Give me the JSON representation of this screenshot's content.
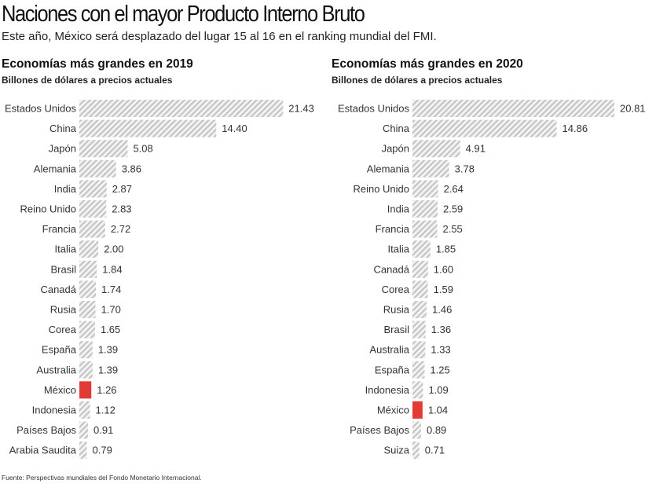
{
  "header": {
    "title": "Naciones con el mayor Producto Interno Bruto",
    "subtitle": "Este año, México será desplazado del lugar 15 al 16 en el ranking mundial del FMI."
  },
  "source": "Fuente: Perspectivas mundiales del Fondo Monetario Internacional.",
  "colors": {
    "bar": "#c8c8c8",
    "highlight": "#e23b35",
    "text": "#333333"
  },
  "chart_data": [
    {
      "type": "bar",
      "orientation": "horizontal",
      "title": "Economías más grandes en 2019",
      "subtitle": "Billones de dólares a precios actuales",
      "highlight": "México",
      "categories": [
        "Estados Unidos",
        "China",
        "Japón",
        "Alemania",
        "India",
        "Reino Unido",
        "Francia",
        "Italia",
        "Brasil",
        "Canadá",
        "Rusia",
        "Corea",
        "España",
        "Australia",
        "México",
        "Indonesia",
        "Países Bajos",
        "Arabia Saudita"
      ],
      "values": [
        21.43,
        14.4,
        5.08,
        3.86,
        2.87,
        2.83,
        2.72,
        2.0,
        1.84,
        1.74,
        1.7,
        1.65,
        1.39,
        1.39,
        1.26,
        1.12,
        0.91,
        0.79
      ],
      "labels": [
        "21.43",
        "14.40",
        "5.08",
        "3.86",
        "2.87",
        "2.83",
        "2.72",
        "2.00",
        "1.84",
        "1.74",
        "1.70",
        "1.65",
        "1.39",
        "1.39",
        "1.26",
        "1.12",
        "0.91",
        "0.79"
      ]
    },
    {
      "type": "bar",
      "orientation": "horizontal",
      "title": "Economías más grandes en 2020",
      "subtitle": "Billones de dólares a precios actuales",
      "highlight": "México",
      "categories": [
        "Estados Unidos",
        "China",
        "Japón",
        "Alemania",
        "Reino Unido",
        "India",
        "Francia",
        "Italia",
        "Canadá",
        "Corea",
        "Rusia",
        "Brasil",
        "Australia",
        "España",
        "Indonesia",
        "México",
        "Países Bajos",
        "Suiza"
      ],
      "values": [
        20.81,
        14.86,
        4.91,
        3.78,
        2.64,
        2.59,
        2.55,
        1.85,
        1.6,
        1.59,
        1.46,
        1.36,
        1.33,
        1.25,
        1.09,
        1.04,
        0.89,
        0.71
      ],
      "labels": [
        "20.81",
        "14.86",
        "4.91",
        "3.78",
        "2.64",
        "2.59",
        "2.55",
        "1.85",
        "1.60",
        "1.59",
        "1.46",
        "1.36",
        "1.33",
        "1.25",
        "1.09",
        "1.04",
        "0.89",
        "0.71"
      ]
    }
  ]
}
